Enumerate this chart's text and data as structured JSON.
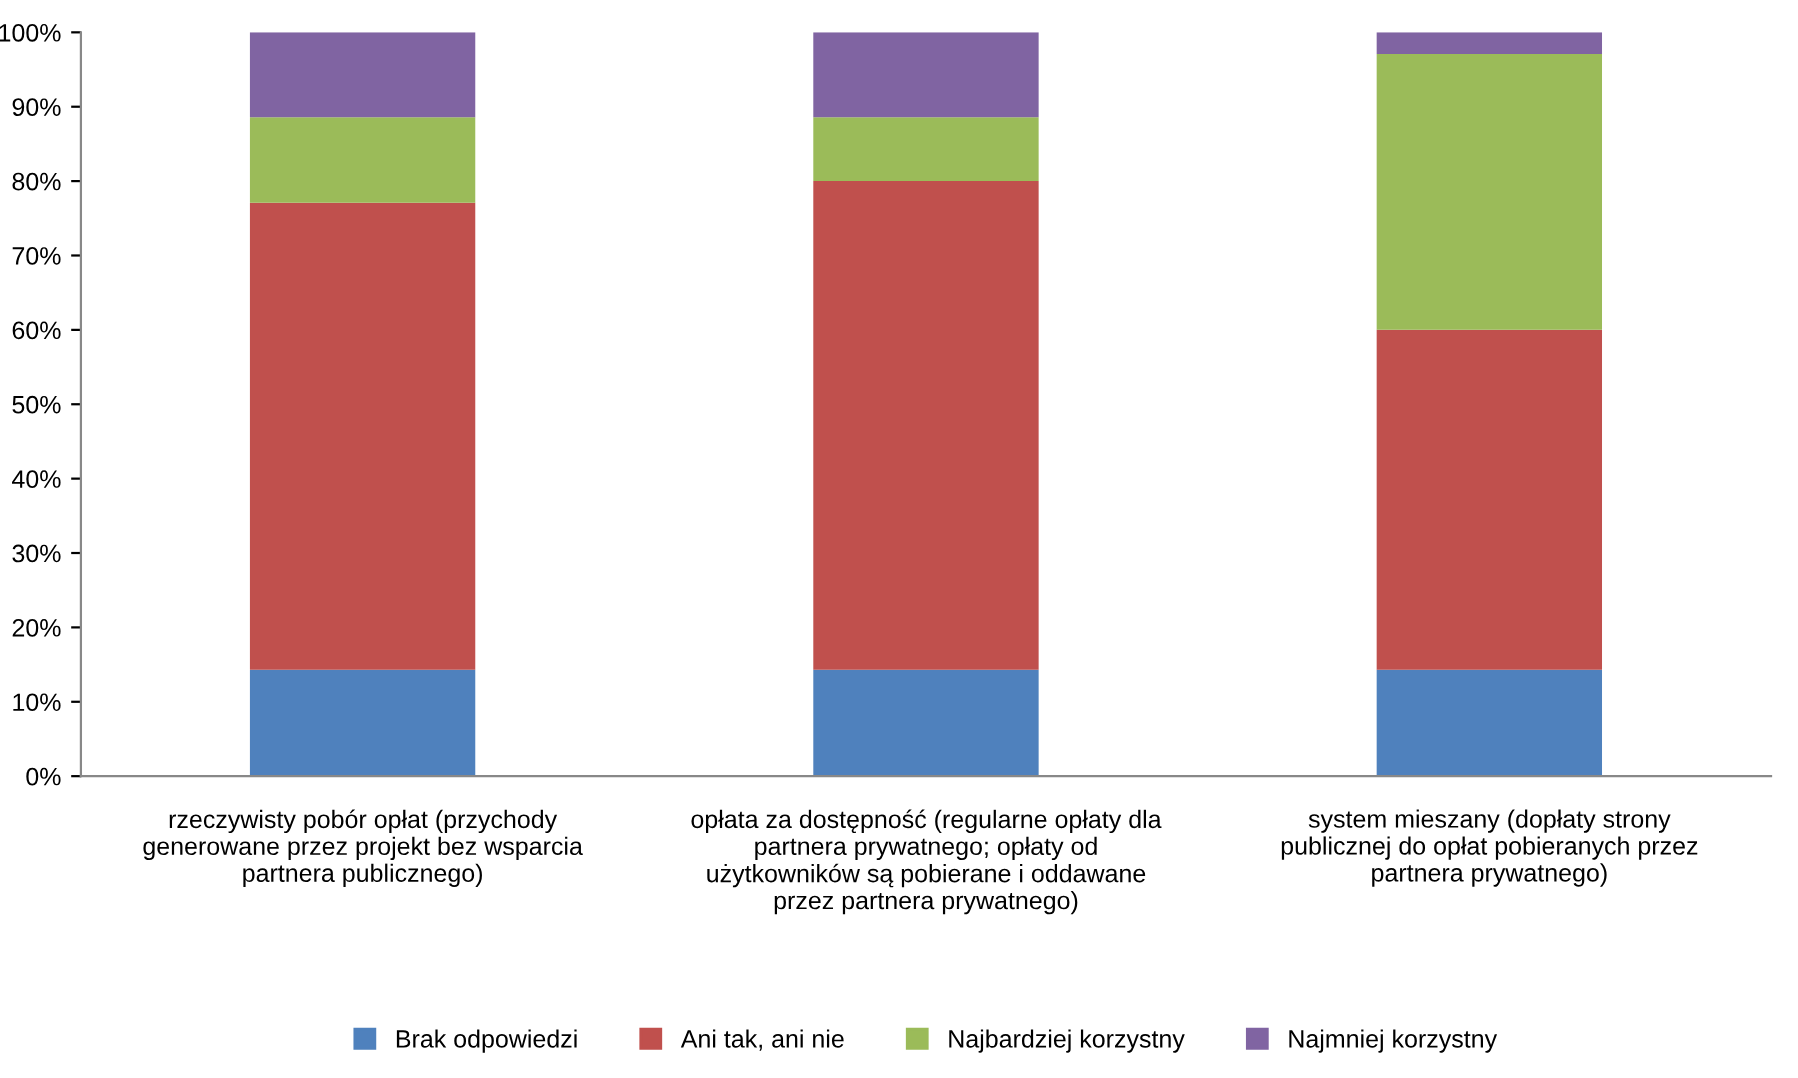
{
  "chart_data": {
    "type": "bar",
    "stacked": true,
    "categories": [
      "rzeczywisty pobór opłat (przychody\ngenerowane przez projekt bez wsparcia\npartnera publicznego)",
      "opłata za dostępność (regularne opłaty dla\npartnera prywatnego; opłaty od\nużytkowników są pobierane i oddawane\nprzez partnera prywatnego)",
      "system mieszany (dopłaty strony\npublicznej do opłat pobieranych przez\npartnera prywatnego)"
    ],
    "series": [
      {
        "name": "Brak odpowiedzi",
        "color": "#4f81bd",
        "values": [
          14.3,
          14.3,
          14.3
        ]
      },
      {
        "name": "Ani tak, ani nie",
        "color": "#c0504d",
        "values": [
          62.8,
          65.7,
          45.7
        ]
      },
      {
        "name": "Najbardziej korzystny",
        "color": "#9bbb59",
        "values": [
          11.5,
          8.6,
          37.1
        ]
      },
      {
        "name": "Najmniej korzystny",
        "color": "#8064a2",
        "values": [
          11.4,
          11.4,
          2.9
        ]
      }
    ],
    "ylim": [
      0,
      100
    ],
    "yticks": [
      {
        "value": 0,
        "label": "0%"
      },
      {
        "value": 10,
        "label": "10%"
      },
      {
        "value": 20,
        "label": "20%"
      },
      {
        "value": 30,
        "label": "30%"
      },
      {
        "value": 40,
        "label": "40%"
      },
      {
        "value": 50,
        "label": "50%"
      },
      {
        "value": 60,
        "label": "60%"
      },
      {
        "value": 70,
        "label": "70%"
      },
      {
        "value": 80,
        "label": "80%"
      },
      {
        "value": 90,
        "label": "90%"
      },
      {
        "value": 100,
        "label": "100%"
      }
    ],
    "grid": false,
    "legend": "bottom"
  }
}
